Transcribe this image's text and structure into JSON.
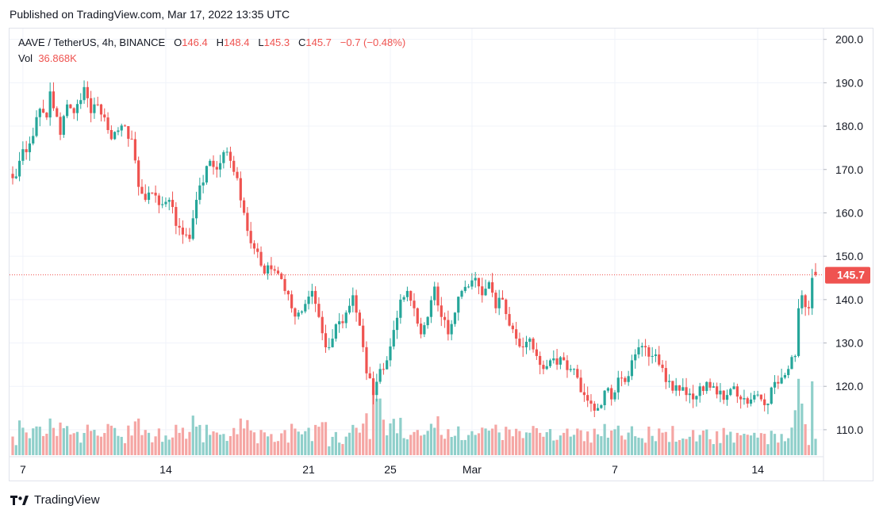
{
  "published": "Published on TradingView.com, Mar 17, 2022 13:35 UTC",
  "legend": {
    "symbol": "AAVE / TetherUS, 4h, BINANCE",
    "o_label": "O",
    "o_value": "146.4",
    "h_label": "H",
    "h_value": "148.4",
    "l_label": "L",
    "l_value": "145.3",
    "c_label": "C",
    "c_value": "145.7",
    "change": "−0.7 (−0.48%)",
    "vol_label": "Vol",
    "vol_value": "36.868K"
  },
  "footer": {
    "brand": "TradingView",
    "logo_icon": "tradingview-logo-icon"
  },
  "colors": {
    "up": "#26a69a",
    "down": "#ef5350",
    "up_vol": "#8fcfca",
    "down_vol": "#f5a6a4",
    "grid": "#f0f3fa",
    "text": "#131722"
  },
  "chart_data": {
    "type": "candlestick",
    "symbol": "AAVE / TetherUS",
    "timeframe": "4h",
    "exchange": "BINANCE",
    "ylim": [
      104.5,
      202.5
    ],
    "y_ticks": [
      "110.0",
      "120.0",
      "130.0",
      "140.0",
      "150.0",
      "160.0",
      "170.0",
      "180.0",
      "190.0",
      "200.0"
    ],
    "x_ticks": [
      {
        "label": "7",
        "index": 3
      },
      {
        "label": "14",
        "index": 45
      },
      {
        "label": "21",
        "index": 87
      },
      {
        "label": "25",
        "index": 111
      },
      {
        "label": "Mar",
        "index": 135
      },
      {
        "label": "7",
        "index": 177
      },
      {
        "label": "14",
        "index": 219
      }
    ],
    "last_price": "145.7",
    "anchors": [
      [
        0,
        168
      ],
      [
        2,
        172
      ],
      [
        5,
        176
      ],
      [
        8,
        184
      ],
      [
        10,
        182
      ],
      [
        11,
        188
      ],
      [
        14,
        178
      ],
      [
        16,
        185
      ],
      [
        18,
        183
      ],
      [
        20,
        186
      ],
      [
        21,
        189
      ],
      [
        23,
        183
      ],
      [
        25,
        185
      ],
      [
        27,
        182
      ],
      [
        29,
        177
      ],
      [
        31,
        179
      ],
      [
        33,
        180
      ],
      [
        35,
        177
      ],
      [
        37,
        166
      ],
      [
        39,
        163
      ],
      [
        42,
        164
      ],
      [
        44,
        162
      ],
      [
        46,
        163
      ],
      [
        48,
        157
      ],
      [
        50,
        155
      ],
      [
        52,
        154
      ],
      [
        54,
        163
      ],
      [
        56,
        167
      ],
      [
        58,
        172
      ],
      [
        60,
        170
      ],
      [
        62,
        174
      ],
      [
        64,
        172
      ],
      [
        66,
        168
      ],
      [
        68,
        160
      ],
      [
        70,
        153
      ],
      [
        72,
        151
      ],
      [
        74,
        146
      ],
      [
        76,
        147
      ],
      [
        78,
        146
      ],
      [
        80,
        142
      ],
      [
        82,
        138
      ],
      [
        84,
        137
      ],
      [
        86,
        139
      ],
      [
        88,
        142
      ],
      [
        90,
        136
      ],
      [
        92,
        129
      ],
      [
        94,
        131
      ],
      [
        96,
        135
      ],
      [
        98,
        137
      ],
      [
        100,
        141
      ],
      [
        102,
        134
      ],
      [
        104,
        123
      ],
      [
        106,
        118
      ],
      [
        108,
        124
      ],
      [
        110,
        126
      ],
      [
        112,
        133
      ],
      [
        114,
        140
      ],
      [
        116,
        142
      ],
      [
        118,
        138
      ],
      [
        120,
        132
      ],
      [
        122,
        136
      ],
      [
        124,
        143
      ],
      [
        126,
        136
      ],
      [
        128,
        132
      ],
      [
        130,
        137
      ],
      [
        132,
        142
      ],
      [
        134,
        143
      ],
      [
        136,
        145
      ],
      [
        138,
        141
      ],
      [
        140,
        144
      ],
      [
        142,
        138
      ],
      [
        144,
        140
      ],
      [
        146,
        134
      ],
      [
        148,
        131
      ],
      [
        150,
        129
      ],
      [
        152,
        131
      ],
      [
        154,
        127
      ],
      [
        156,
        124
      ],
      [
        158,
        126
      ],
      [
        160,
        125
      ],
      [
        162,
        126
      ],
      [
        164,
        124
      ],
      [
        166,
        122
      ],
      [
        168,
        118
      ],
      [
        170,
        116
      ],
      [
        172,
        115
      ],
      [
        174,
        119
      ],
      [
        176,
        117
      ],
      [
        178,
        122
      ],
      [
        180,
        121
      ],
      [
        182,
        126
      ],
      [
        184,
        129
      ],
      [
        186,
        129
      ],
      [
        188,
        127
      ],
      [
        190,
        125
      ],
      [
        192,
        121
      ],
      [
        194,
        119
      ],
      [
        196,
        119
      ],
      [
        198,
        118
      ],
      [
        200,
        117
      ],
      [
        202,
        120
      ],
      [
        204,
        121
      ],
      [
        206,
        120
      ],
      [
        208,
        119
      ],
      [
        210,
        118
      ],
      [
        212,
        120
      ],
      [
        214,
        117
      ],
      [
        216,
        116
      ],
      [
        218,
        118
      ],
      [
        220,
        117
      ],
      [
        222,
        116
      ],
      [
        224,
        121
      ],
      [
        226,
        122
      ],
      [
        228,
        124
      ],
      [
        230,
        127
      ],
      [
        231,
        138
      ],
      [
        232,
        141
      ],
      [
        234,
        138
      ],
      [
        235,
        145
      ],
      [
        236,
        145.7
      ]
    ],
    "volume_ylim": [
      0,
      160
    ]
  }
}
